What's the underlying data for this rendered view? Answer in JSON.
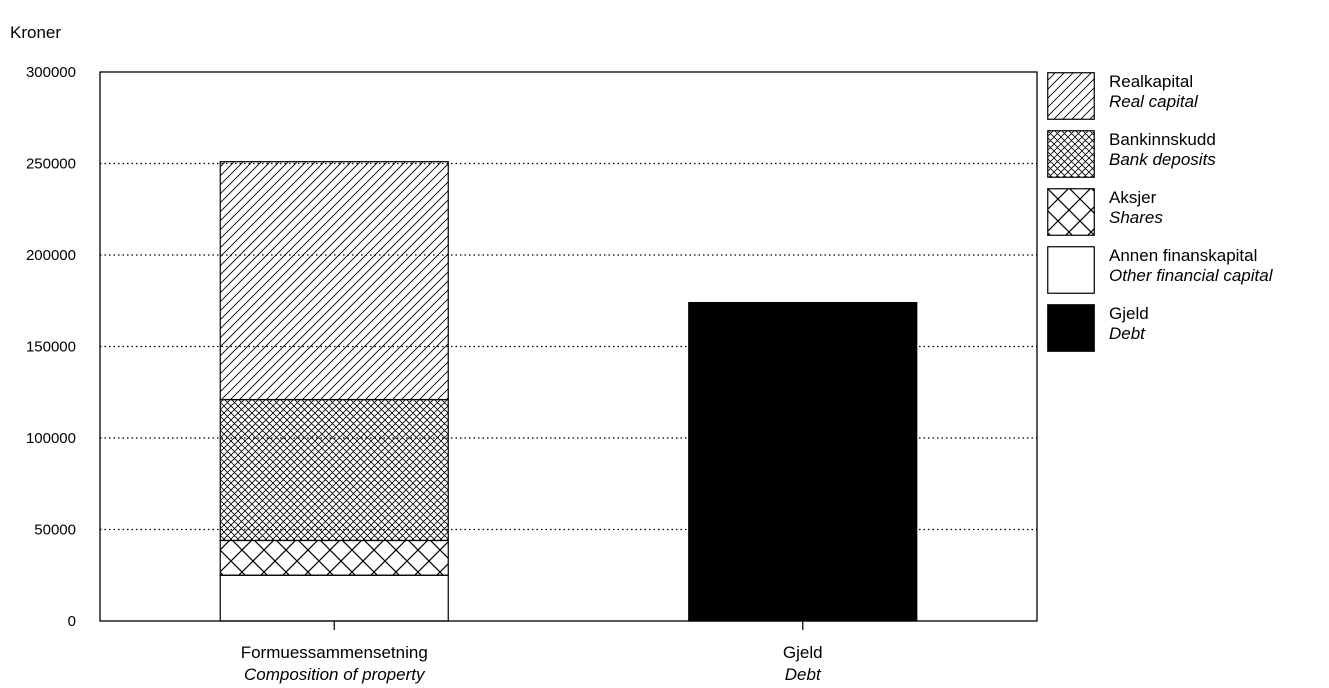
{
  "chart_data": {
    "type": "bar",
    "stacked": true,
    "ylabel": "Kroner",
    "ylim": [
      0,
      300000
    ],
    "yticks": [
      0,
      50000,
      100000,
      150000,
      200000,
      250000,
      300000
    ],
    "grid": "horizontal dotted",
    "legend_position": "right",
    "categories": [
      {
        "label": "Formuessammensetning",
        "sublabel": "Composition of property"
      },
      {
        "label": "Gjeld",
        "sublabel": "Debt"
      }
    ],
    "series": [
      {
        "name": "Annen finanskapital",
        "sublabel": "Other financial capital",
        "pattern": "white",
        "values": [
          25000,
          0
        ]
      },
      {
        "name": "Aksjer",
        "sublabel": "Shares",
        "pattern": "large-crosshatch",
        "values": [
          19000,
          0
        ]
      },
      {
        "name": "Bankinnskudd",
        "sublabel": "Bank deposits",
        "pattern": "fine-crosshatch",
        "values": [
          77000,
          0
        ]
      },
      {
        "name": "Realkapital",
        "sublabel": "Real capital",
        "pattern": "diagonal",
        "values": [
          130000,
          0
        ]
      },
      {
        "name": "Gjeld",
        "sublabel": "Debt",
        "pattern": "black",
        "values": [
          0,
          174000
        ]
      }
    ],
    "legend_order": [
      "Realkapital",
      "Bankinnskudd",
      "Aksjer",
      "Annen finanskapital",
      "Gjeld"
    ]
  }
}
